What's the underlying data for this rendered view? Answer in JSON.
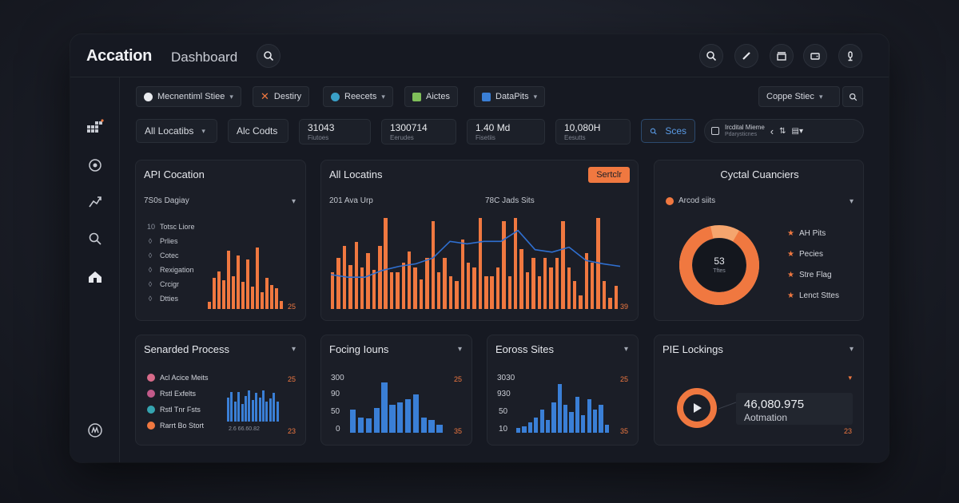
{
  "app": {
    "brand": "Accation",
    "subtitle": "Dashboard"
  },
  "header_icons": [
    "search-icon",
    "search-icon",
    "pen-icon",
    "clapper-icon",
    "wallet-icon",
    "microphone-icon"
  ],
  "toolbar": {
    "chips": [
      {
        "label": "Mecnentiml Stiee",
        "dot_color": "#e9ebef"
      },
      {
        "label": "Destiry",
        "dot_color": "#f07840"
      },
      {
        "label": "Reecets",
        "dot_color": "#3aa0c8"
      },
      {
        "label": "Aictes",
        "dot_color": "#7fbf5a"
      },
      {
        "label": "DataPits",
        "dot_color": "#3a7fd6"
      }
    ],
    "right_select": "Coppe Stiec"
  },
  "filters": {
    "locations": "All Locatibs",
    "codes": "Alc Codts",
    "search_btn": "Sces",
    "nav_label": "Ircdital Mieme",
    "nav_sub": "Pdarysticnes"
  },
  "stats": [
    {
      "value": "31043",
      "sub": "Fiutoes"
    },
    {
      "value": "1300714",
      "sub": "Eerudes"
    },
    {
      "value": "1.40 Md",
      "sub": "Fisetiis"
    },
    {
      "value": "10,080H",
      "sub": "Eesutts"
    }
  ],
  "cards": {
    "api": {
      "title": "API Cocation",
      "select": "7S0s Dagiay",
      "items": [
        {
          "bullet": "10",
          "label": "Totsc Liore"
        },
        {
          "bullet": "◊",
          "label": "Prlies"
        },
        {
          "bullet": "◊",
          "label": "Cotec"
        },
        {
          "bullet": "◊",
          "label": "Rexigation"
        },
        {
          "bullet": "◊",
          "label": "Crcigr"
        },
        {
          "bullet": "◊",
          "label": "Dtties"
        }
      ],
      "corner": "25",
      "bars": [
        0.1,
        0.45,
        0.55,
        0.42,
        0.85,
        0.48,
        0.78,
        0.4,
        0.72,
        0.32,
        0.9,
        0.25,
        0.45,
        0.35,
        0.3,
        0.12
      ]
    },
    "locations": {
      "title": "All Locatins",
      "button": "Sertclr",
      "left_label": "201 Ava Urp",
      "right_label": "78C Jads Sits",
      "corner": "39",
      "bars": [
        0.4,
        0.55,
        0.68,
        0.47,
        0.72,
        0.45,
        0.6,
        0.42,
        0.68,
        0.98,
        0.4,
        0.4,
        0.5,
        0.62,
        0.45,
        0.32,
        0.55,
        0.95,
        0.4,
        0.55,
        0.35,
        0.3,
        0.75,
        0.5,
        0.45,
        0.98,
        0.35,
        0.35,
        0.45,
        0.95,
        0.35,
        0.98,
        0.65,
        0.4,
        0.55,
        0.35,
        0.55,
        0.45,
        0.55,
        0.95,
        0.45,
        0.3,
        0.15,
        0.6,
        0.5,
        0.98,
        0.3,
        0.12,
        0.25
      ],
      "line": [
        0.45,
        0.42,
        0.42,
        0.5,
        0.55,
        0.58,
        0.65,
        0.85,
        0.82,
        0.85,
        0.85,
        0.98,
        0.75,
        0.72,
        0.78,
        0.62,
        0.58,
        0.55
      ]
    },
    "cyclical": {
      "title": "Cyctal Cuanciers",
      "select": "Arcod siits",
      "center_value": "53",
      "center_sub": "Tftes",
      "legend": [
        "AH Pits",
        "Pecies",
        "Stre Flag",
        "Lenct Sttes"
      ],
      "share": 0.88
    },
    "process": {
      "title": "Senarded Process",
      "corner_top": "25",
      "corner_bottom": "23",
      "axis": "2.6 66.60.82",
      "items": [
        {
          "label": "Acl Acice Meits",
          "color": "#d86b8a"
        },
        {
          "label": "Rstl Exfelts",
          "color": "#c25a8a"
        },
        {
          "label": "Rstl Tnr Fsts",
          "color": "#35a4b0"
        },
        {
          "label": "Rarrt Bo Stort",
          "color": "#f07840"
        }
      ],
      "bars": [
        0.6,
        0.75,
        0.5,
        0.75,
        0.45,
        0.65,
        0.78,
        0.55,
        0.72,
        0.6,
        0.78,
        0.5,
        0.58,
        0.72,
        0.5
      ]
    },
    "focing": {
      "title": "Focing Iouns",
      "corner_top": "25",
      "corner_bottom": "35",
      "axis": [
        "300",
        "90",
        "50",
        "0"
      ],
      "bars": [
        0.45,
        0.3,
        0.28,
        0.48,
        0.98,
        0.55,
        0.6,
        0.65,
        0.75,
        0.3,
        0.25,
        0.15
      ]
    },
    "eoross": {
      "title": "Eoross Sites",
      "corner_top": "25",
      "corner_bottom": "35",
      "axis": [
        "3030",
        "930",
        "50",
        "10"
      ],
      "bars": [
        0.1,
        0.12,
        0.2,
        0.3,
        0.45,
        0.25,
        0.6,
        0.95,
        0.55,
        0.4,
        0.7,
        0.35,
        0.65,
        0.45,
        0.55,
        0.15
      ]
    },
    "pie": {
      "title": "PIE Lockings",
      "value": "46,080.975",
      "sub": "Aotmation",
      "corner_top": "▾",
      "corner_bottom": "23"
    }
  },
  "colors": {
    "accent_orange": "#f07840",
    "accent_blue": "#3a7fd6",
    "panel": "#1b1e27"
  }
}
